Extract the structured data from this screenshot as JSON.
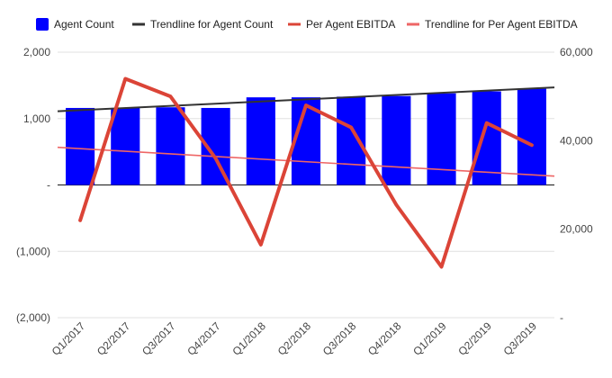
{
  "chart_data": {
    "type": "bar",
    "categories": [
      "Q1/2017",
      "Q2/2017",
      "Q3/2017",
      "Q4/2017",
      "Q1/2018",
      "Q2/2018",
      "Q3/2018",
      "Q4/2018",
      "Q1/2019",
      "Q2/2019",
      "Q3/2019"
    ],
    "series": [
      {
        "name": "Agent Count",
        "kind": "bar",
        "axis": "left",
        "color": "#0000ff",
        "values": [
          1160,
          1160,
          1170,
          1160,
          1320,
          1320,
          1330,
          1340,
          1380,
          1410,
          1450
        ]
      },
      {
        "name": "Trendline for Agent Count",
        "kind": "trendline",
        "axis": "left",
        "color": "#333333",
        "start": 1110,
        "end": 1470
      },
      {
        "name": "Per Agent EBITDA",
        "kind": "line",
        "axis": "right",
        "color": "#db4437",
        "values": [
          22000,
          54000,
          50000,
          36000,
          16500,
          48000,
          43000,
          25500,
          11500,
          44000,
          39000
        ]
      },
      {
        "name": "Trendline for Per Agent EBITDA",
        "kind": "trendline",
        "axis": "right",
        "color": "#ee6666",
        "start": 38500,
        "end": 32000
      }
    ],
    "left_axis": {
      "ylim": [
        -2000,
        2000
      ],
      "ticks": [
        {
          "value": 2000,
          "label": "2,000"
        },
        {
          "value": 1000,
          "label": "1,000"
        },
        {
          "value": 0,
          "label": "-"
        },
        {
          "value": -1000,
          "label": "(1,000)"
        },
        {
          "value": -2000,
          "label": "(2,000)"
        }
      ]
    },
    "right_axis": {
      "ylim": [
        0,
        60000
      ],
      "ticks": [
        {
          "value": 60000,
          "label": "60,000"
        },
        {
          "value": 40000,
          "label": "40,000"
        },
        {
          "value": 20000,
          "label": "20,000"
        },
        {
          "value": 0,
          "label": "-"
        }
      ]
    },
    "legend_position": "top",
    "grid": true
  }
}
